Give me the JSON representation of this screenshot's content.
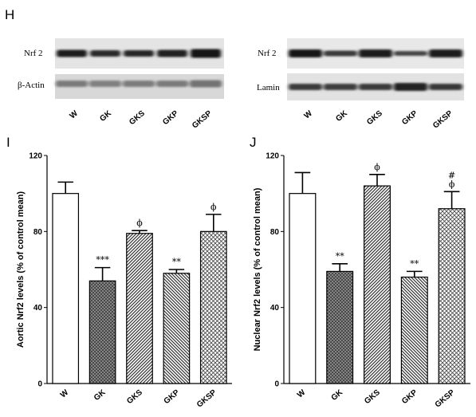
{
  "panels": {
    "h": "H",
    "i": "I",
    "j": "J"
  },
  "blots": {
    "left": {
      "rows": [
        "Nrf 2",
        "β-Actin"
      ],
      "lanes": [
        "W",
        "GK",
        "GKS",
        "GKP",
        "GKSP"
      ]
    },
    "right": {
      "rows": [
        "Nrf 2",
        "Lamin"
      ],
      "lanes": [
        "W",
        "GK",
        "GKS",
        "GKP",
        "GKSP"
      ]
    }
  },
  "chart_data": [
    {
      "type": "bar",
      "panel": "I",
      "categories": [
        "W",
        "GK",
        "GKS",
        "GKP",
        "GKSP"
      ],
      "values": [
        100,
        54,
        79,
        58,
        80
      ],
      "errors": [
        6,
        7,
        1.5,
        2,
        9
      ],
      "annotations": [
        "",
        "***",
        "ϕ",
        "**",
        "ϕ"
      ],
      "fills": [
        "none",
        "dense-cross",
        "diag-right",
        "diag-left",
        "cross"
      ],
      "ylabel": "Aortic Nrf2 levels (% of control mean)",
      "yticks": [
        0,
        40,
        80,
        120
      ],
      "ylim": [
        0,
        120
      ],
      "grid": false
    },
    {
      "type": "bar",
      "panel": "J",
      "categories": [
        "W",
        "GK",
        "GKS",
        "GKP",
        "GKSP"
      ],
      "values": [
        100,
        59,
        104,
        56,
        92
      ],
      "errors": [
        11,
        4,
        6,
        3,
        9
      ],
      "annotations": [
        "",
        "**",
        "ϕ",
        "**",
        "#\nϕ"
      ],
      "fills": [
        "none",
        "dense-cross",
        "diag-right",
        "diag-left",
        "cross"
      ],
      "ylabel": "Nuclear Nrf2 levels (% of control mean)",
      "yticks": [
        0,
        40,
        80,
        120
      ],
      "ylim": [
        0,
        120
      ],
      "grid": false
    }
  ]
}
